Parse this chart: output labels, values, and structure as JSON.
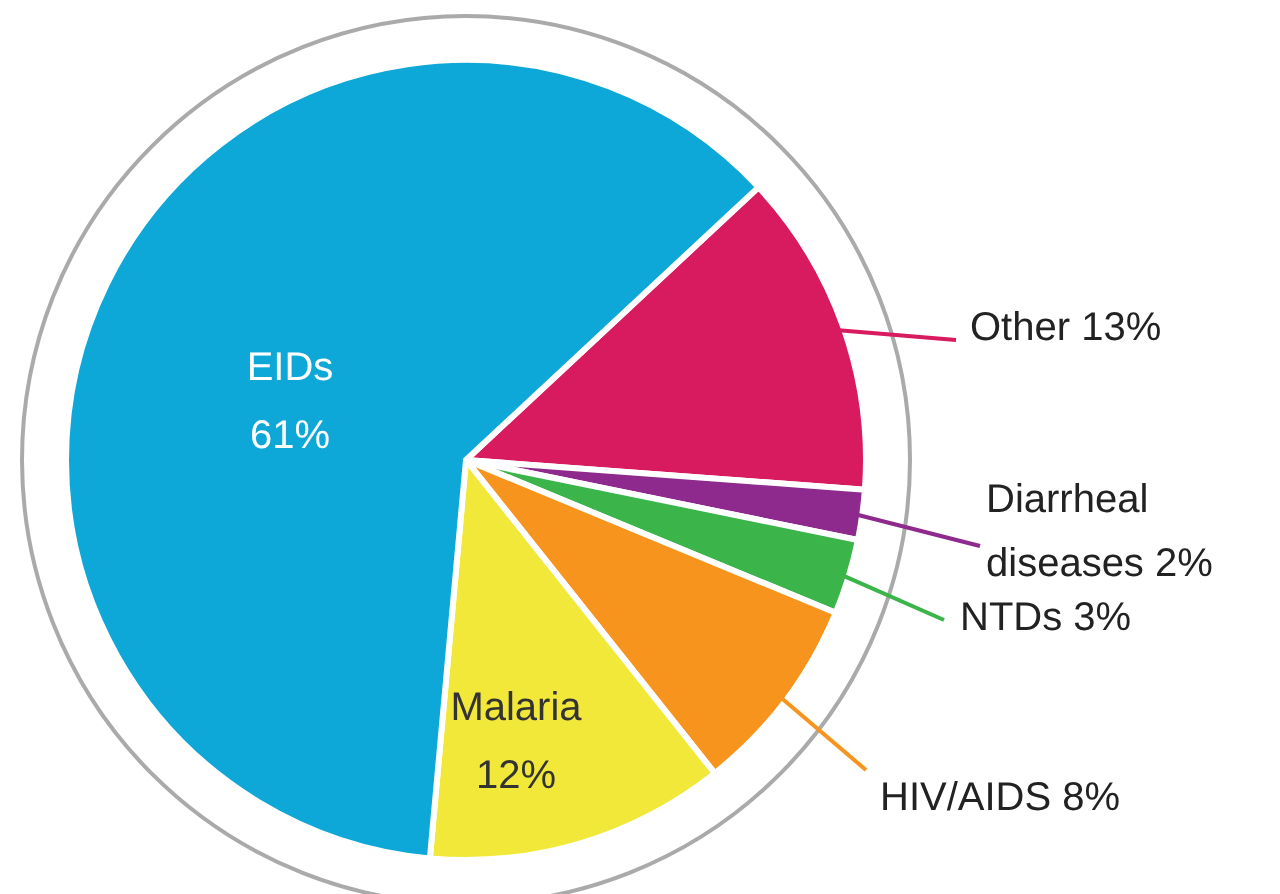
{
  "chart_data": {
    "type": "pie",
    "categories": [
      "Other",
      "Diarrheal diseases",
      "NTDs",
      "HIV/AIDS",
      "Malaria",
      "EIDs"
    ],
    "values": [
      13,
      2,
      3,
      8,
      12,
      61
    ],
    "value_labels": [
      "13%",
      "2%",
      "3%",
      "8%",
      "12%",
      "61%"
    ],
    "colors": [
      "#d81b5e",
      "#8e2a8e",
      "#3bb54a",
      "#f7941e",
      "#f2e83a",
      "#0ea8d8"
    ]
  }
}
